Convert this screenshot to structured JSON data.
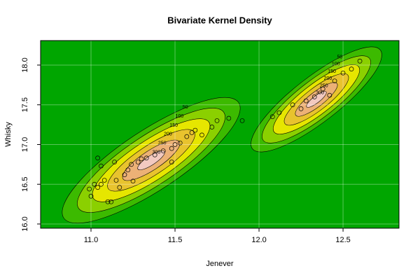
{
  "chart_data": {
    "type": "contour-scatter",
    "title": "Bivariate Kernel Density",
    "x_label": "Jenever",
    "y_label": "Whisky",
    "xlim": [
      10.7,
      12.833
    ],
    "ylim": [
      15.947,
      18.308
    ],
    "xticks": [
      {
        "value": 11,
        "label": "11.0"
      },
      11.5,
      {
        "value": 12,
        "label": "12.0"
      },
      12.5
    ],
    "yticks": [
      {
        "value": 16,
        "label": "16.0"
      },
      16.5,
      {
        "value": 17,
        "label": "17.0"
      },
      17.5,
      {
        "value": 18,
        "label": "18.0"
      }
    ],
    "grid": true,
    "background_color": "#00a600",
    "levels": [
      50,
      100,
      150,
      200,
      250,
      300
    ],
    "level_colors": [
      "#3cba00",
      "#8bd000",
      "#e6e600",
      "#e8c32e",
      "#ecb176",
      "#f2c9c0"
    ],
    "x": [
      10.99,
      11.0,
      11.02,
      11.04,
      11.04,
      11.06,
      11.06,
      11.08,
      11.1,
      11.12,
      11.14,
      11.15,
      11.17,
      11.2,
      11.22,
      11.24,
      11.25,
      11.28,
      11.3,
      11.33,
      11.38,
      11.43,
      11.48,
      11.48,
      11.5,
      11.53,
      11.57,
      11.6,
      11.62,
      11.66,
      11.72,
      11.75,
      11.82,
      11.9,
      12.08,
      12.12,
      12.2,
      12.25,
      12.28,
      12.33,
      12.38,
      12.42,
      12.45,
      12.5,
      12.55,
      12.6
    ],
    "y": [
      16.44,
      16.35,
      16.5,
      16.46,
      16.83,
      16.73,
      16.5,
      16.55,
      16.28,
      16.28,
      16.78,
      16.55,
      16.46,
      16.62,
      16.68,
      16.75,
      16.54,
      16.78,
      16.82,
      16.83,
      16.87,
      16.92,
      16.78,
      16.95,
      17.0,
      17.02,
      17.1,
      17.15,
      17.18,
      17.12,
      17.22,
      17.3,
      17.33,
      17.3,
      17.35,
      17.4,
      17.5,
      17.45,
      17.55,
      17.6,
      17.7,
      17.62,
      17.8,
      17.9,
      17.95,
      18.05
    ]
  }
}
